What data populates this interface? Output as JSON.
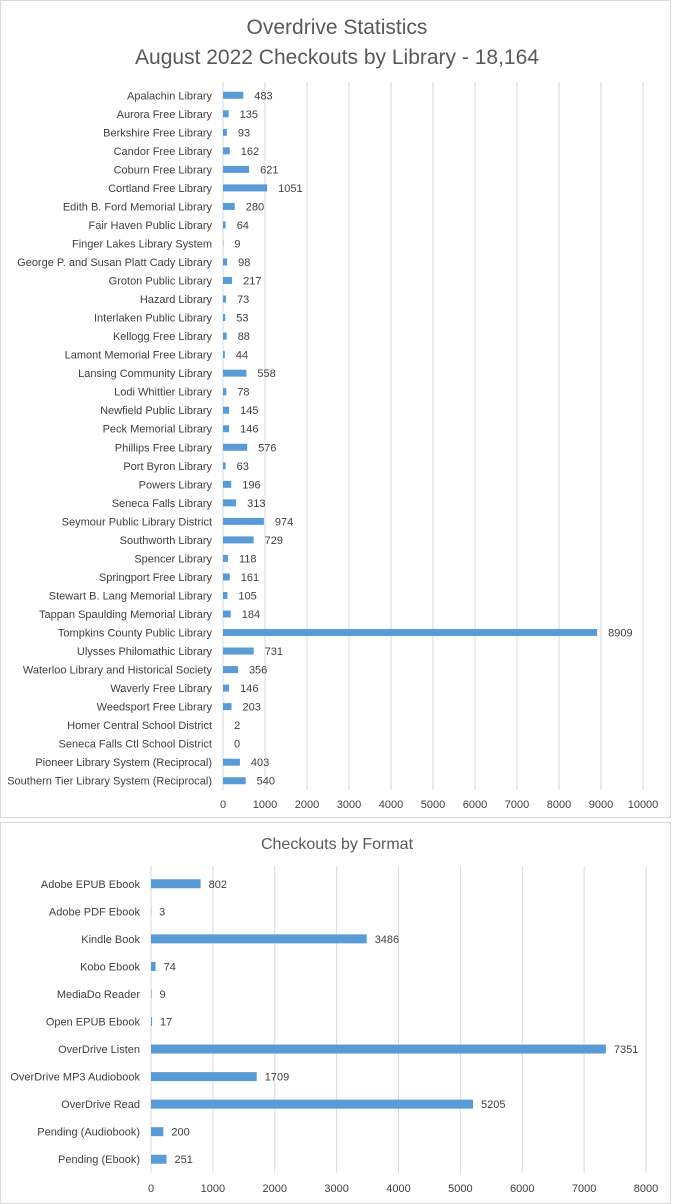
{
  "chart_data": [
    {
      "type": "bar",
      "orientation": "horizontal",
      "title": "Overdrive Statistics",
      "subtitle": "August 2022 Checkouts by Library - 18,164",
      "categories": [
        "Apalachin Library",
        "Aurora Free Library",
        "Berkshire Free Library",
        "Candor Free Library",
        "Coburn Free Library",
        "Cortland Free Library",
        "Edith B. Ford Memorial Library",
        "Fair Haven Public Library",
        "Finger Lakes Library System",
        "George P. and Susan Platt Cady Library",
        "Groton Public Library",
        "Hazard Library",
        "Interlaken Public Library",
        "Kellogg Free Library",
        "Lamont Memorial Free Library",
        "Lansing Community Library",
        "Lodi Whittier Library",
        "Newfield Public Library",
        "Peck Memorial Library",
        "Phillips Free Library",
        "Port Byron Library",
        "Powers Library",
        "Seneca Falls Library",
        "Seymour Public Library District",
        "Southworth Library",
        "Spencer Library",
        "Springport Free Library",
        "Stewart B. Lang Memorial Library",
        "Tappan Spaulding Memorial Library",
        "Tompkins County Public Library",
        "Ulysses Philomathic Library",
        "Waterloo Library and Historical Society",
        "Waverly Free Library",
        "Weedsport Free Library",
        "Homer Central School District",
        "Seneca Falls Ctl School District",
        "Pioneer Library System (Reciprocal)",
        "Southern Tier Library System (Reciprocal)"
      ],
      "values": [
        483,
        135,
        93,
        162,
        621,
        1051,
        280,
        64,
        9,
        98,
        217,
        73,
        53,
        88,
        44,
        558,
        78,
        145,
        146,
        576,
        63,
        196,
        313,
        974,
        729,
        118,
        161,
        105,
        184,
        8909,
        731,
        356,
        146,
        203,
        2,
        0,
        403,
        540
      ],
      "xlim": [
        0,
        10000
      ],
      "xticks": [
        "0",
        "1000",
        "2000",
        "3000",
        "4000",
        "5000",
        "6000",
        "7000",
        "8000",
        "9000",
        "10000"
      ],
      "grid": true,
      "bar_color": "#5b9bd5"
    },
    {
      "type": "bar",
      "orientation": "horizontal",
      "title": "Checkouts by Format",
      "categories": [
        "Adobe EPUB Ebook",
        "Adobe PDF Ebook",
        "Kindle Book",
        "Kobo Ebook",
        "MediaDo Reader",
        "Open EPUB Ebook",
        "OverDrive Listen",
        "OverDrive MP3 Audiobook",
        "OverDrive Read",
        "Pending (Audiobook)",
        "Pending (Ebook)"
      ],
      "values": [
        802,
        3,
        3486,
        74,
        9,
        17,
        7351,
        1709,
        5205,
        200,
        251
      ],
      "xlim": [
        0,
        8000
      ],
      "xticks": [
        "0",
        "1000",
        "2000",
        "3000",
        "4000",
        "5000",
        "6000",
        "7000",
        "8000"
      ],
      "grid": true,
      "bar_color": "#5b9bd5"
    }
  ]
}
